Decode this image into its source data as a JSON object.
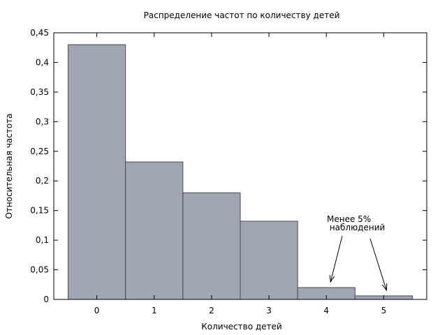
{
  "chart_data": {
    "type": "bar",
    "title": "Распределение частот по  количеству детей",
    "xlabel": "Количество детей",
    "ylabel": "Относительная частота",
    "categories": [
      "0",
      "1",
      "2",
      "3",
      "4",
      "5"
    ],
    "values": [
      0.43,
      0.232,
      0.18,
      0.132,
      0.02,
      0.006
    ],
    "ylim": [
      0,
      0.45
    ],
    "yticks": [
      "0",
      "0,05",
      "0,1",
      "0,15",
      "0,2",
      "0,25",
      "0,3",
      "0,35",
      "0,4",
      "0,45"
    ],
    "xlim": [
      -0.75,
      5.75
    ],
    "grid": false,
    "bar_color": "#a0a6b4",
    "annotation": {
      "lines": [
        "Менее 5%",
        " наблюдений"
      ],
      "targets": [
        4,
        5
      ]
    }
  }
}
